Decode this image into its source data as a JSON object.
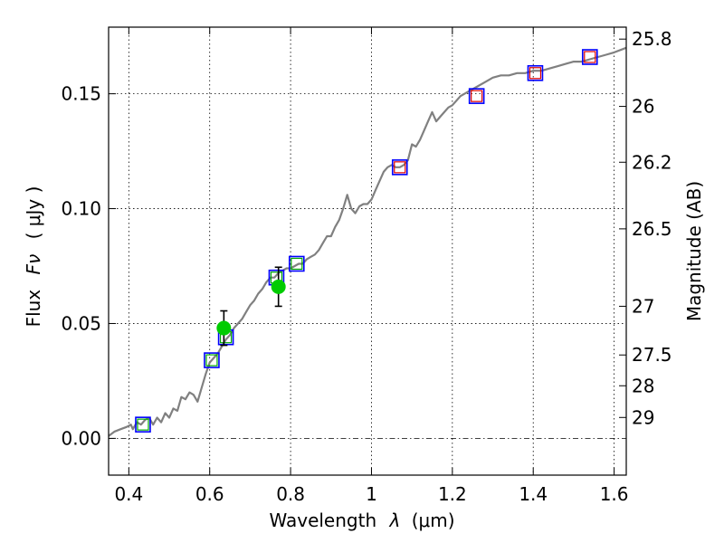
{
  "chart_data": {
    "type": "line",
    "xlabel_text": "Wavelength",
    "xlabel_symbol": "λ",
    "xlabel_unit": "(μm)",
    "ylabel_text": "Flux",
    "ylabel_symbol": "Fν",
    "ylabel_unit": "( μJy )",
    "y2label": "Magnitude (AB)",
    "xlim": [
      0.35,
      1.63
    ],
    "ylim": [
      -0.016,
      0.179
    ],
    "grid": true,
    "x_ticks": [
      {
        "value": 0.4,
        "label": "0.4"
      },
      {
        "value": 0.6,
        "label": "0.6"
      },
      {
        "value": 0.8,
        "label": "0.8"
      },
      {
        "value": 1.0,
        "label": "1"
      },
      {
        "value": 1.2,
        "label": "1.2"
      },
      {
        "value": 1.4,
        "label": "1.4"
      },
      {
        "value": 1.6,
        "label": "1.6"
      }
    ],
    "y_ticks": [
      {
        "value": 0.0,
        "label": "0.00"
      },
      {
        "value": 0.05,
        "label": "0.05"
      },
      {
        "value": 0.1,
        "label": "0.10"
      },
      {
        "value": 0.15,
        "label": "0.15"
      }
    ],
    "y2_ticks": [
      {
        "flux": 0.1738,
        "label": "25.8"
      },
      {
        "flux": 0.1445,
        "label": "26"
      },
      {
        "flux": 0.1202,
        "label": "26.2"
      },
      {
        "flux": 0.0912,
        "label": "26.5"
      },
      {
        "flux": 0.0575,
        "label": "27"
      },
      {
        "flux": 0.0363,
        "label": "27.5"
      },
      {
        "flux": 0.0229,
        "label": "28"
      },
      {
        "flux": 0.0091,
        "label": "29"
      }
    ],
    "series": [
      {
        "style": "line",
        "color": "#808080",
        "points": [
          [
            0.35,
            0.001
          ],
          [
            0.365,
            0.003
          ],
          [
            0.38,
            0.004
          ],
          [
            0.395,
            0.005
          ],
          [
            0.405,
            0.006
          ],
          [
            0.41,
            0.004
          ],
          [
            0.42,
            0.007
          ],
          [
            0.43,
            0.006
          ],
          [
            0.44,
            0.008
          ],
          [
            0.45,
            0.009
          ],
          [
            0.46,
            0.006
          ],
          [
            0.47,
            0.009
          ],
          [
            0.48,
            0.007
          ],
          [
            0.49,
            0.011
          ],
          [
            0.5,
            0.009
          ],
          [
            0.51,
            0.013
          ],
          [
            0.52,
            0.012
          ],
          [
            0.53,
            0.018
          ],
          [
            0.54,
            0.017
          ],
          [
            0.55,
            0.02
          ],
          [
            0.56,
            0.019
          ],
          [
            0.57,
            0.016
          ],
          [
            0.58,
            0.022
          ],
          [
            0.59,
            0.028
          ],
          [
            0.6,
            0.033
          ],
          [
            0.61,
            0.035
          ],
          [
            0.62,
            0.037
          ],
          [
            0.63,
            0.04
          ],
          [
            0.64,
            0.043
          ],
          [
            0.65,
            0.045
          ],
          [
            0.66,
            0.048
          ],
          [
            0.67,
            0.05
          ],
          [
            0.68,
            0.052
          ],
          [
            0.69,
            0.055
          ],
          [
            0.7,
            0.058
          ],
          [
            0.71,
            0.06
          ],
          [
            0.72,
            0.063
          ],
          [
            0.73,
            0.065
          ],
          [
            0.74,
            0.068
          ],
          [
            0.75,
            0.07
          ],
          [
            0.76,
            0.07
          ],
          [
            0.77,
            0.072
          ],
          [
            0.78,
            0.073
          ],
          [
            0.79,
            0.074
          ],
          [
            0.8,
            0.074
          ],
          [
            0.81,
            0.075
          ],
          [
            0.82,
            0.076
          ],
          [
            0.83,
            0.076
          ],
          [
            0.84,
            0.078
          ],
          [
            0.85,
            0.079
          ],
          [
            0.86,
            0.08
          ],
          [
            0.87,
            0.082
          ],
          [
            0.88,
            0.085
          ],
          [
            0.89,
            0.088
          ],
          [
            0.9,
            0.088
          ],
          [
            0.91,
            0.092
          ],
          [
            0.92,
            0.095
          ],
          [
            0.93,
            0.1
          ],
          [
            0.94,
            0.106
          ],
          [
            0.95,
            0.1
          ],
          [
            0.96,
            0.098
          ],
          [
            0.97,
            0.101
          ],
          [
            0.98,
            0.102
          ],
          [
            0.99,
            0.102
          ],
          [
            1.0,
            0.104
          ],
          [
            1.01,
            0.108
          ],
          [
            1.02,
            0.112
          ],
          [
            1.03,
            0.116
          ],
          [
            1.04,
            0.118
          ],
          [
            1.05,
            0.119
          ],
          [
            1.06,
            0.118
          ],
          [
            1.07,
            0.118
          ],
          [
            1.08,
            0.119
          ],
          [
            1.09,
            0.121
          ],
          [
            1.1,
            0.128
          ],
          [
            1.11,
            0.127
          ],
          [
            1.12,
            0.13
          ],
          [
            1.13,
            0.134
          ],
          [
            1.14,
            0.138
          ],
          [
            1.15,
            0.142
          ],
          [
            1.16,
            0.138
          ],
          [
            1.17,
            0.14
          ],
          [
            1.18,
            0.142
          ],
          [
            1.19,
            0.144
          ],
          [
            1.2,
            0.145
          ],
          [
            1.22,
            0.149
          ],
          [
            1.24,
            0.151
          ],
          [
            1.26,
            0.153
          ],
          [
            1.28,
            0.155
          ],
          [
            1.3,
            0.157
          ],
          [
            1.32,
            0.158
          ],
          [
            1.34,
            0.158
          ],
          [
            1.36,
            0.159
          ],
          [
            1.38,
            0.159
          ],
          [
            1.4,
            0.16
          ],
          [
            1.42,
            0.16
          ],
          [
            1.44,
            0.161
          ],
          [
            1.46,
            0.162
          ],
          [
            1.48,
            0.163
          ],
          [
            1.5,
            0.164
          ],
          [
            1.52,
            0.164
          ],
          [
            1.54,
            0.165
          ],
          [
            1.56,
            0.166
          ],
          [
            1.58,
            0.167
          ],
          [
            1.6,
            0.168
          ],
          [
            1.63,
            0.17
          ]
        ]
      },
      {
        "style": "model-squares",
        "color": "#0000ff",
        "inner_color_optical": "#00aa00",
        "inner_color_ir": "#dd0000",
        "points": [
          {
            "x": 0.435,
            "y": 0.006,
            "band": "optical"
          },
          {
            "x": 0.605,
            "y": 0.034,
            "band": "optical"
          },
          {
            "x": 0.64,
            "y": 0.044,
            "band": "optical"
          },
          {
            "x": 0.765,
            "y": 0.07,
            "band": "optical"
          },
          {
            "x": 0.815,
            "y": 0.076,
            "band": "optical"
          },
          {
            "x": 1.07,
            "y": 0.118,
            "band": "ir"
          },
          {
            "x": 1.26,
            "y": 0.149,
            "band": "ir"
          },
          {
            "x": 1.405,
            "y": 0.159,
            "band": "ir"
          },
          {
            "x": 1.54,
            "y": 0.166,
            "band": "ir"
          }
        ]
      },
      {
        "style": "observed",
        "color": "#00cc00",
        "points": [
          {
            "x": 0.635,
            "y": 0.048,
            "yerr": 0.0075
          },
          {
            "x": 0.77,
            "y": 0.066,
            "yerr": 0.0085
          }
        ]
      }
    ]
  }
}
